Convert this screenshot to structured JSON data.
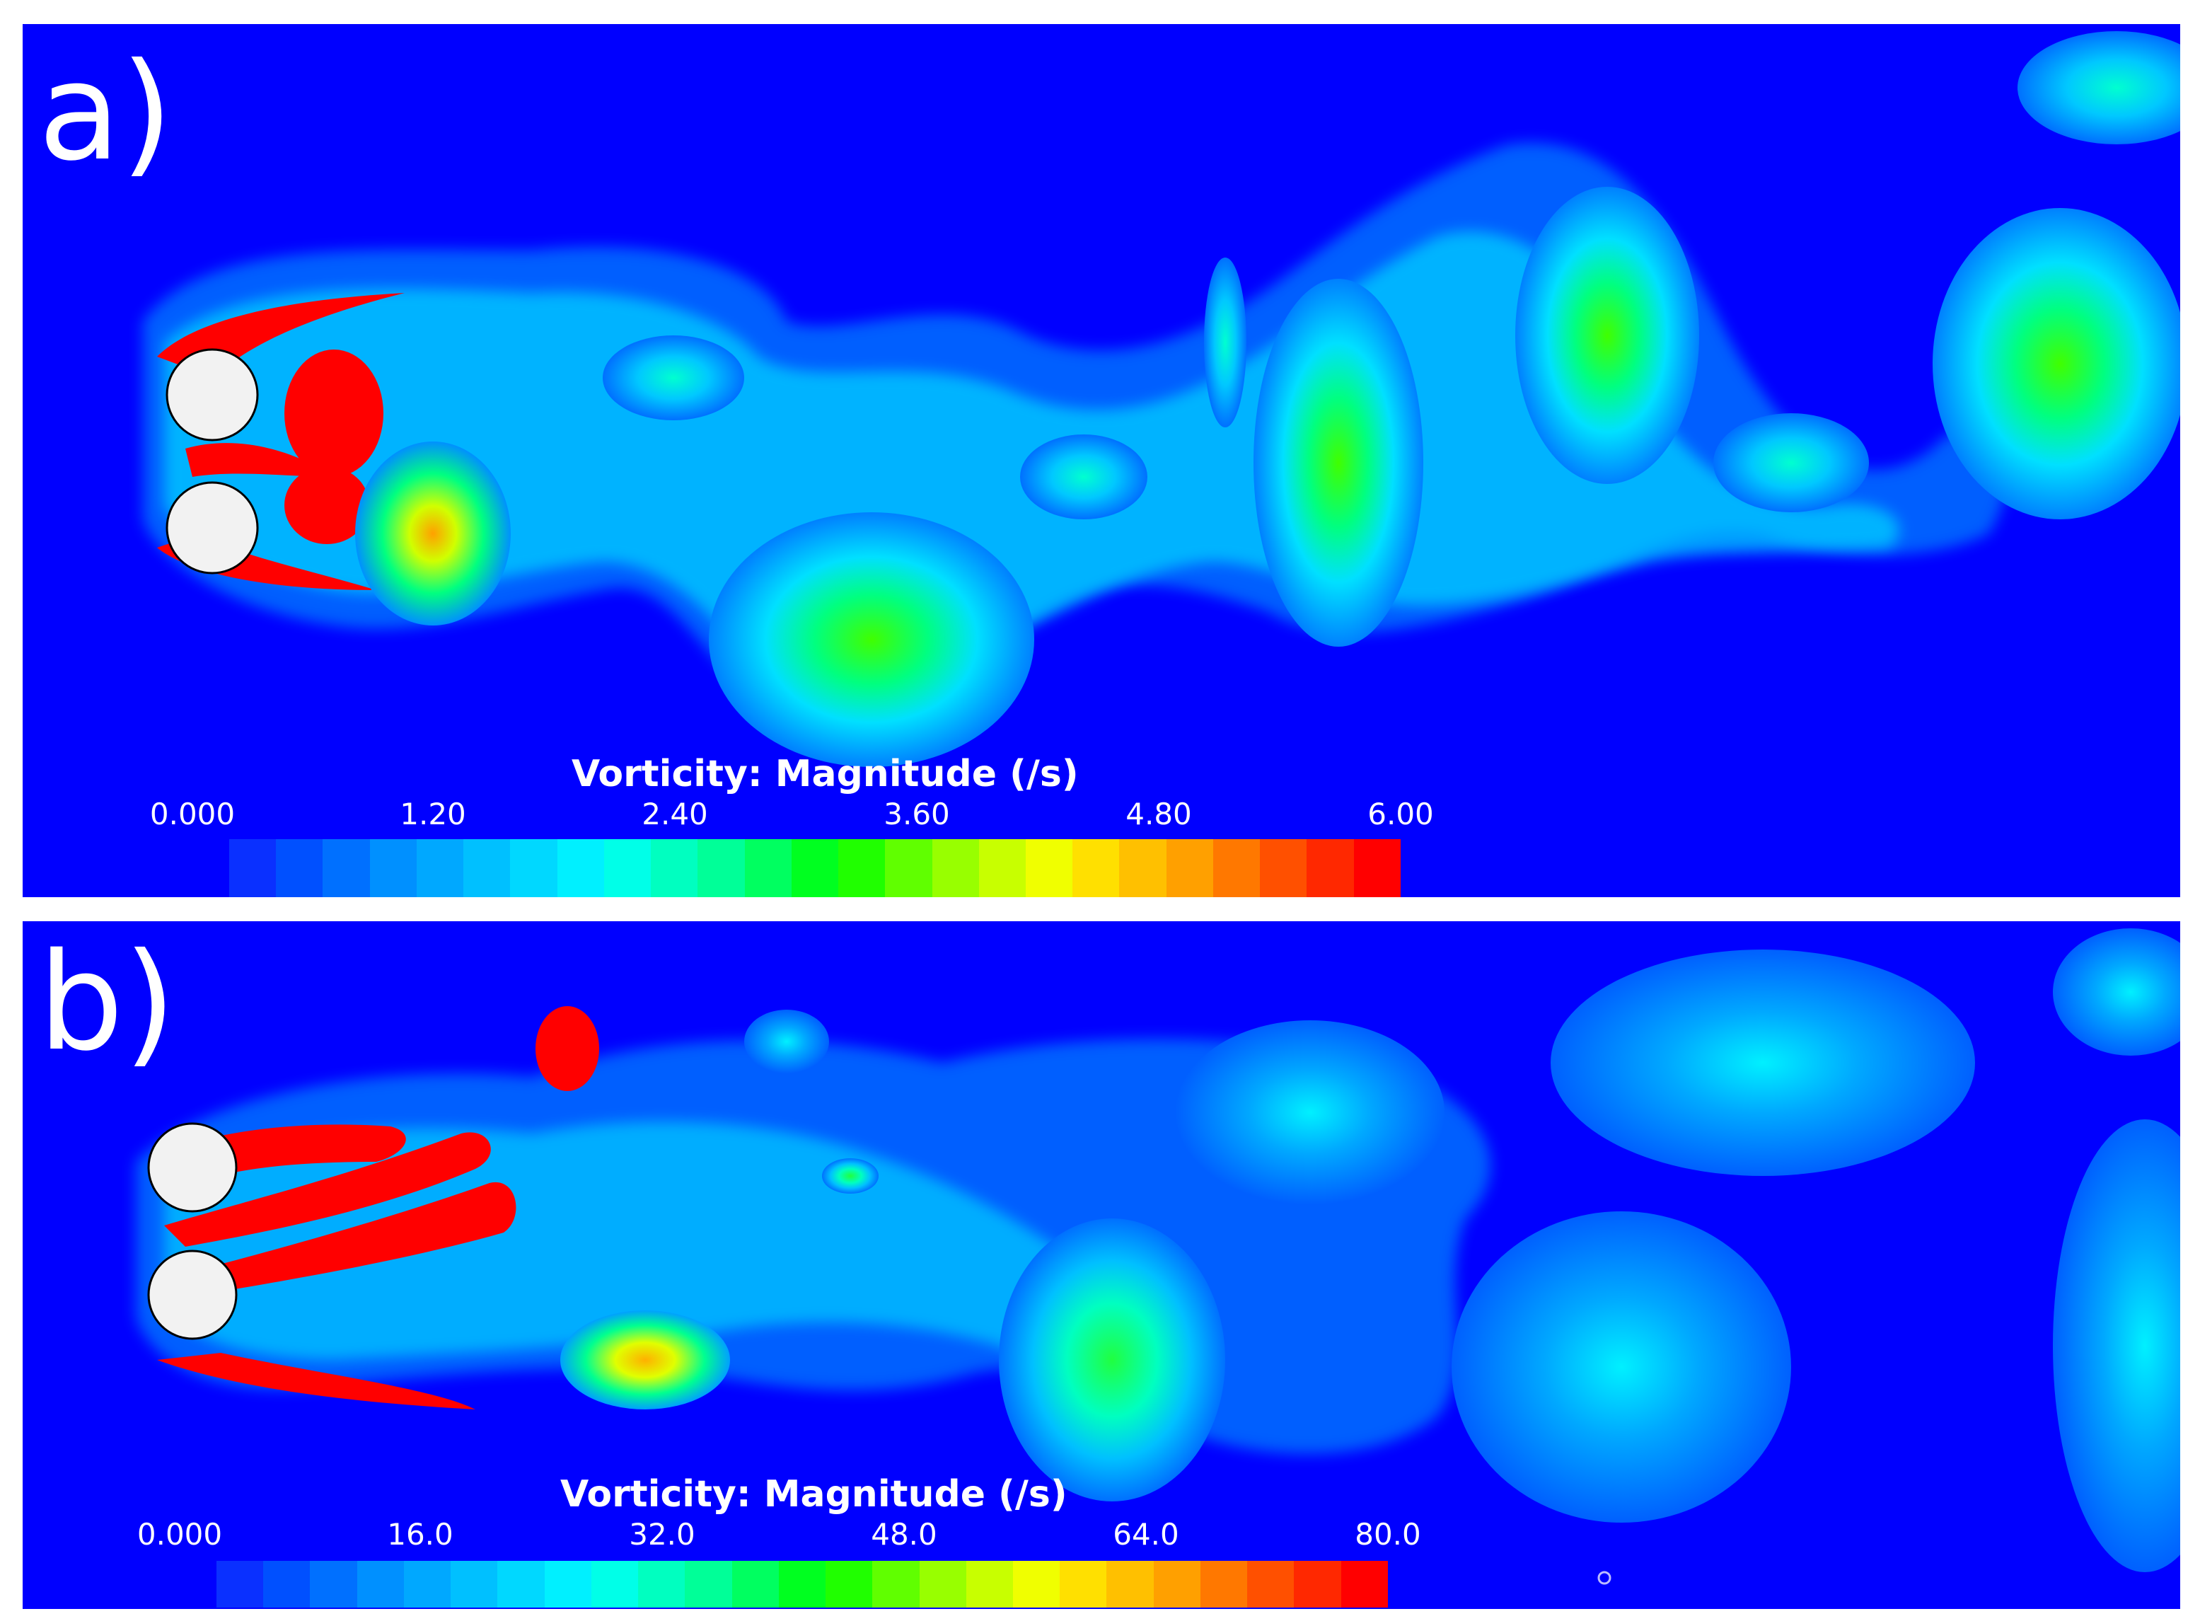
{
  "panels": [
    {
      "label": "a)",
      "legend": {
        "title": "Vorticity: Magnitude (/s)",
        "ticks": [
          "0.000",
          "1.20",
          "2.40",
          "3.60",
          "4.80",
          "6.00"
        ],
        "range": [
          0,
          6.0
        ]
      }
    },
    {
      "label": "b)",
      "legend": {
        "title": "Vorticity: Magnitude (/s)",
        "ticks": [
          "0.000",
          "16.0",
          "32.0",
          "48.0",
          "64.0",
          "80.0"
        ],
        "range": [
          0,
          80.0
        ]
      }
    }
  ],
  "colors": {
    "background": "#0000ff",
    "cylinder_fill": "#f2f2f2",
    "colormap": [
      "#0a30ff",
      "#0050ff",
      "#0070ff",
      "#0090ff",
      "#00a8ff",
      "#00c0ff",
      "#00d8ff",
      "#00f0ff",
      "#00ffe8",
      "#00ffc0",
      "#00ff98",
      "#00ff60",
      "#00ff20",
      "#20ff00",
      "#60ff00",
      "#98ff00",
      "#c8ff00",
      "#f0ff00",
      "#ffe000",
      "#ffc000",
      "#ffa000",
      "#ff7800",
      "#ff5000",
      "#ff2800",
      "#ff0000"
    ]
  }
}
